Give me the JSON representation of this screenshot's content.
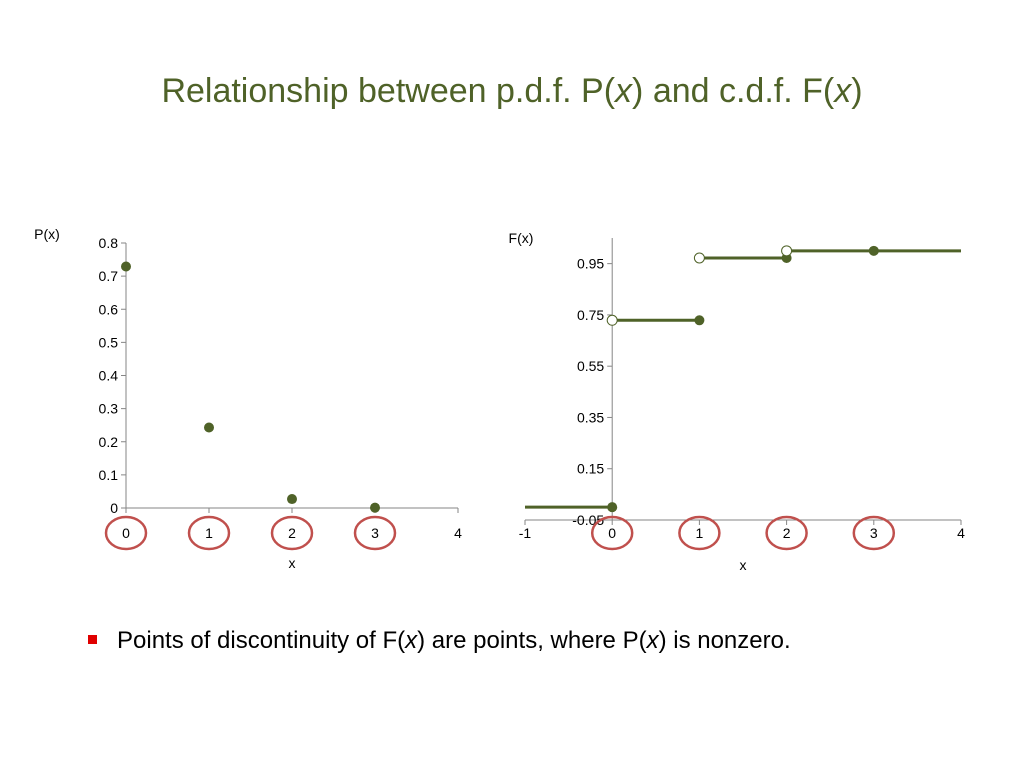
{
  "title": {
    "prefix": "Relationship between p.d.f. P(",
    "var1": "x",
    "middle": ") and c.d.f. F(",
    "var2": "x",
    "suffix": ")"
  },
  "bullet": {
    "part1": "Points of discontinuity of F(",
    "var1": "x",
    "part2": ") are points, where P(",
    "var2": "x",
    "part3": ") is nonzero."
  },
  "colors": {
    "series": "#4f6228",
    "circle": "#c0504d",
    "bullet_marker": "#e00000"
  },
  "chart_data": [
    {
      "type": "scatter",
      "ylabel": "P(x)",
      "xlabel": "x",
      "xlim": [
        0,
        4
      ],
      "ylim": [
        0,
        0.8
      ],
      "x_ticks": [
        "0",
        "1",
        "2",
        "3",
        "4"
      ],
      "y_ticks": [
        "0",
        "0.1",
        "0.2",
        "0.3",
        "0.4",
        "0.5",
        "0.6",
        "0.7",
        "0.8"
      ],
      "points": [
        {
          "x": 0,
          "y": 0.729
        },
        {
          "x": 1,
          "y": 0.243
        },
        {
          "x": 2,
          "y": 0.027
        },
        {
          "x": 3,
          "y": 0.001
        }
      ],
      "highlighted_x": [
        0,
        1,
        2,
        3
      ],
      "grid": false
    },
    {
      "type": "line",
      "ylabel": "F(x)",
      "xlabel": "x",
      "xlim": [
        -1,
        4
      ],
      "ylim": [
        -0.05,
        1.05
      ],
      "x_ticks": [
        "-1",
        "0",
        "1",
        "2",
        "3",
        "4"
      ],
      "y_ticks": [
        "-0.05",
        "0.15",
        "0.35",
        "0.55",
        "0.75",
        "0.95"
      ],
      "steps": [
        {
          "x_start": -1,
          "x_end": 0,
          "y": 0
        },
        {
          "x_start": 0,
          "x_end": 1,
          "y": 0.729
        },
        {
          "x_start": 1,
          "x_end": 2,
          "y": 0.972
        },
        {
          "x_start": 2,
          "x_end": 4,
          "y": 1.0
        }
      ],
      "filled_points": [
        {
          "x": 0,
          "y": 0
        },
        {
          "x": 1,
          "y": 0.729
        },
        {
          "x": 2,
          "y": 0.972
        },
        {
          "x": 3,
          "y": 1.0
        }
      ],
      "open_points": [
        {
          "x": 0,
          "y": 0.729
        },
        {
          "x": 1,
          "y": 0.972
        },
        {
          "x": 2,
          "y": 1.0
        }
      ],
      "highlighted_x": [
        0,
        1,
        2,
        3
      ],
      "grid": false
    }
  ]
}
